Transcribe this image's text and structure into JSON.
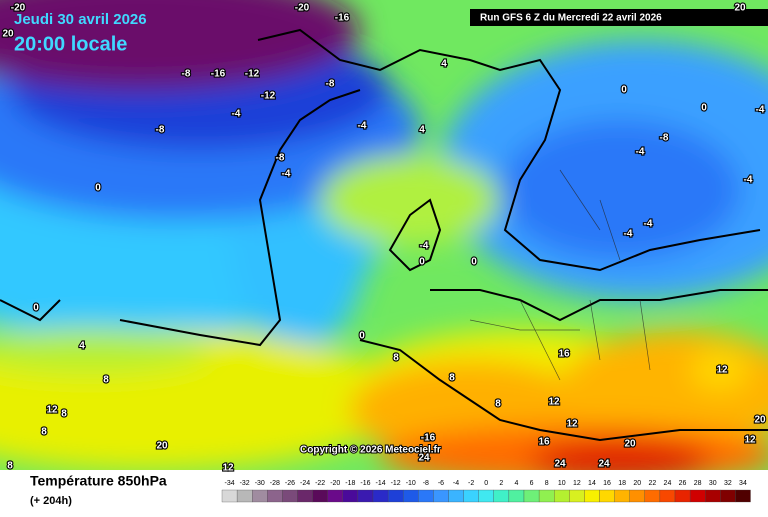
{
  "header": {
    "date": "Jeudi 30 avril 2026",
    "time": "20:00 locale",
    "run": "Run GFS 6 Z du Mercredi 22 avril 2026"
  },
  "copyright": "Copyright © 2026 Meteociel.fr",
  "footer": {
    "title": "Température 850hPa",
    "subtitle": "(+ 204h)"
  },
  "contour_labels": [
    -20,
    -16,
    -8,
    -16,
    -12,
    -12,
    -8,
    -4,
    -8,
    -8,
    -4,
    0,
    -4,
    4,
    4,
    0,
    0,
    -4,
    -8,
    -4,
    -4,
    -4,
    -4,
    -4,
    0,
    0,
    0,
    0,
    4,
    8,
    8,
    8,
    16,
    8,
    12,
    12,
    16,
    12,
    -16,
    20,
    24,
    24,
    20,
    12,
    8,
    8,
    8,
    12,
    12,
    24,
    20,
    20,
    -20,
    20
  ],
  "scale": {
    "values": [
      -34,
      -32,
      -30,
      -28,
      -26,
      -24,
      -22,
      -20,
      -18,
      -16,
      -14,
      -12,
      -10,
      -8,
      -6,
      -4,
      -2,
      0,
      2,
      4,
      6,
      8,
      10,
      12,
      14,
      16,
      18,
      20,
      22,
      24,
      26,
      28,
      30,
      32,
      34
    ],
    "colors": [
      "#d8d8d8",
      "#b8b8b8",
      "#a08ca0",
      "#8c648c",
      "#7a4a7a",
      "#6a286a",
      "#5a0a5a",
      "#6a0a8a",
      "#4a0a9a",
      "#3a1ab0",
      "#2a2ac8",
      "#1e40d8",
      "#1e5ae8",
      "#2a78f8",
      "#3a96ff",
      "#3ab4ff",
      "#3ad2ff",
      "#40e8f0",
      "#40f0c8",
      "#50f0a0",
      "#6ef078",
      "#90f050",
      "#b4f030",
      "#d8f020",
      "#f8f000",
      "#ffd800",
      "#ffb400",
      "#ff9000",
      "#ff6c00",
      "#f84800",
      "#e82400",
      "#d00000",
      "#a80000",
      "#800000",
      "#500000"
    ]
  }
}
